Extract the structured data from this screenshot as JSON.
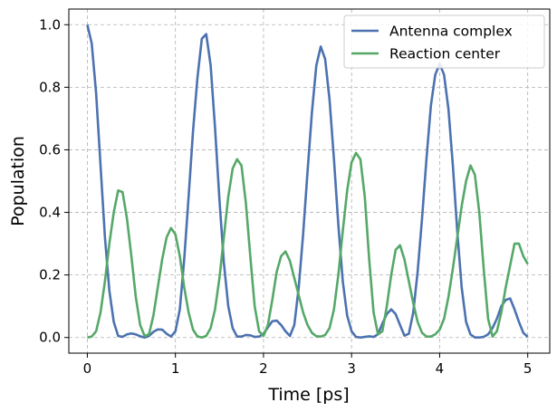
{
  "chart_data": {
    "type": "line",
    "title": "",
    "xlabel": "Time [ps]",
    "ylabel": "Population",
    "xlim": [
      -0.21,
      5.25
    ],
    "ylim": [
      -0.05,
      1.05
    ],
    "xticks": [
      0,
      1,
      2,
      3,
      4,
      5
    ],
    "xtick_labels": [
      "0",
      "1",
      "2",
      "3",
      "4",
      "5"
    ],
    "yticks": [
      0.0,
      0.2,
      0.4,
      0.6,
      0.8,
      1.0
    ],
    "ytick_labels": [
      "0.0",
      "0.2",
      "0.4",
      "0.6",
      "0.8",
      "1.0"
    ],
    "grid": true,
    "legend_position": "top-right",
    "series": [
      {
        "name": "Antenna complex",
        "color": "#4c72b0",
        "points": [
          [
            0.0,
            1.0
          ],
          [
            0.05,
            0.94
          ],
          [
            0.1,
            0.78
          ],
          [
            0.15,
            0.55
          ],
          [
            0.2,
            0.32
          ],
          [
            0.25,
            0.15
          ],
          [
            0.3,
            0.05
          ],
          [
            0.35,
            0.005
          ],
          [
            0.4,
            0.002
          ],
          [
            0.45,
            0.01
          ],
          [
            0.5,
            0.013
          ],
          [
            0.55,
            0.01
          ],
          [
            0.6,
            0.004
          ],
          [
            0.65,
            0.0
          ],
          [
            0.7,
            0.005
          ],
          [
            0.75,
            0.018
          ],
          [
            0.8,
            0.026
          ],
          [
            0.85,
            0.025
          ],
          [
            0.9,
            0.012
          ],
          [
            0.95,
            0.003
          ],
          [
            1.0,
            0.02
          ],
          [
            1.05,
            0.09
          ],
          [
            1.1,
            0.25
          ],
          [
            1.15,
            0.45
          ],
          [
            1.2,
            0.66
          ],
          [
            1.25,
            0.83
          ],
          [
            1.3,
            0.955
          ],
          [
            1.35,
            0.97
          ],
          [
            1.4,
            0.87
          ],
          [
            1.45,
            0.67
          ],
          [
            1.5,
            0.44
          ],
          [
            1.55,
            0.24
          ],
          [
            1.6,
            0.1
          ],
          [
            1.65,
            0.03
          ],
          [
            1.7,
            0.003
          ],
          [
            1.75,
            0.003
          ],
          [
            1.8,
            0.008
          ],
          [
            1.85,
            0.007
          ],
          [
            1.9,
            0.002
          ],
          [
            1.95,
            0.003
          ],
          [
            2.0,
            0.012
          ],
          [
            2.05,
            0.032
          ],
          [
            2.1,
            0.052
          ],
          [
            2.15,
            0.054
          ],
          [
            2.2,
            0.04
          ],
          [
            2.25,
            0.02
          ],
          [
            2.3,
            0.005
          ],
          [
            2.35,
            0.04
          ],
          [
            2.4,
            0.16
          ],
          [
            2.45,
            0.33
          ],
          [
            2.5,
            0.53
          ],
          [
            2.55,
            0.72
          ],
          [
            2.6,
            0.87
          ],
          [
            2.65,
            0.93
          ],
          [
            2.7,
            0.89
          ],
          [
            2.75,
            0.76
          ],
          [
            2.8,
            0.57
          ],
          [
            2.85,
            0.36
          ],
          [
            2.9,
            0.18
          ],
          [
            2.95,
            0.07
          ],
          [
            3.0,
            0.02
          ],
          [
            3.05,
            0.002
          ],
          [
            3.1,
            0.0
          ],
          [
            3.15,
            0.002
          ],
          [
            3.2,
            0.004
          ],
          [
            3.25,
            0.002
          ],
          [
            3.3,
            0.01
          ],
          [
            3.35,
            0.045
          ],
          [
            3.4,
            0.075
          ],
          [
            3.45,
            0.09
          ],
          [
            3.5,
            0.075
          ],
          [
            3.55,
            0.04
          ],
          [
            3.6,
            0.006
          ],
          [
            3.65,
            0.012
          ],
          [
            3.7,
            0.08
          ],
          [
            3.75,
            0.21
          ],
          [
            3.8,
            0.38
          ],
          [
            3.85,
            0.57
          ],
          [
            3.9,
            0.74
          ],
          [
            3.95,
            0.84
          ],
          [
            4.0,
            0.875
          ],
          [
            4.05,
            0.84
          ],
          [
            4.1,
            0.73
          ],
          [
            4.15,
            0.55
          ],
          [
            4.2,
            0.34
          ],
          [
            4.25,
            0.16
          ],
          [
            4.3,
            0.05
          ],
          [
            4.35,
            0.01
          ],
          [
            4.4,
            0.0
          ],
          [
            4.45,
            0.0
          ],
          [
            4.5,
            0.002
          ],
          [
            4.55,
            0.01
          ],
          [
            4.6,
            0.03
          ],
          [
            4.65,
            0.06
          ],
          [
            4.7,
            0.1
          ],
          [
            4.75,
            0.12
          ],
          [
            4.8,
            0.125
          ],
          [
            4.85,
            0.09
          ],
          [
            4.9,
            0.05
          ],
          [
            4.95,
            0.015
          ],
          [
            5.0,
            0.002
          ]
        ]
      },
      {
        "name": "Reaction center",
        "color": "#55a868",
        "points": [
          [
            0.0,
            0.0
          ],
          [
            0.05,
            0.003
          ],
          [
            0.1,
            0.02
          ],
          [
            0.15,
            0.08
          ],
          [
            0.2,
            0.18
          ],
          [
            0.25,
            0.3
          ],
          [
            0.3,
            0.4
          ],
          [
            0.35,
            0.47
          ],
          [
            0.4,
            0.465
          ],
          [
            0.45,
            0.38
          ],
          [
            0.5,
            0.26
          ],
          [
            0.55,
            0.13
          ],
          [
            0.6,
            0.04
          ],
          [
            0.65,
            0.005
          ],
          [
            0.7,
            0.01
          ],
          [
            0.75,
            0.07
          ],
          [
            0.8,
            0.16
          ],
          [
            0.85,
            0.25
          ],
          [
            0.9,
            0.32
          ],
          [
            0.95,
            0.35
          ],
          [
            1.0,
            0.33
          ],
          [
            1.05,
            0.26
          ],
          [
            1.1,
            0.16
          ],
          [
            1.15,
            0.08
          ],
          [
            1.2,
            0.025
          ],
          [
            1.25,
            0.004
          ],
          [
            1.3,
            0.0
          ],
          [
            1.35,
            0.005
          ],
          [
            1.4,
            0.03
          ],
          [
            1.45,
            0.09
          ],
          [
            1.5,
            0.19
          ],
          [
            1.55,
            0.32
          ],
          [
            1.6,
            0.45
          ],
          [
            1.65,
            0.54
          ],
          [
            1.7,
            0.57
          ],
          [
            1.75,
            0.55
          ],
          [
            1.8,
            0.43
          ],
          [
            1.85,
            0.26
          ],
          [
            1.9,
            0.1
          ],
          [
            1.95,
            0.02
          ],
          [
            2.0,
            0.005
          ],
          [
            2.05,
            0.04
          ],
          [
            2.1,
            0.12
          ],
          [
            2.15,
            0.21
          ],
          [
            2.2,
            0.26
          ],
          [
            2.25,
            0.275
          ],
          [
            2.3,
            0.245
          ],
          [
            2.35,
            0.19
          ],
          [
            2.4,
            0.135
          ],
          [
            2.45,
            0.08
          ],
          [
            2.5,
            0.04
          ],
          [
            2.55,
            0.015
          ],
          [
            2.6,
            0.004
          ],
          [
            2.65,
            0.003
          ],
          [
            2.7,
            0.008
          ],
          [
            2.75,
            0.03
          ],
          [
            2.8,
            0.09
          ],
          [
            2.85,
            0.2
          ],
          [
            2.9,
            0.34
          ],
          [
            2.95,
            0.47
          ],
          [
            3.0,
            0.56
          ],
          [
            3.05,
            0.59
          ],
          [
            3.1,
            0.57
          ],
          [
            3.15,
            0.45
          ],
          [
            3.2,
            0.25
          ],
          [
            3.25,
            0.08
          ],
          [
            3.3,
            0.01
          ],
          [
            3.35,
            0.02
          ],
          [
            3.4,
            0.1
          ],
          [
            3.45,
            0.2
          ],
          [
            3.5,
            0.28
          ],
          [
            3.55,
            0.295
          ],
          [
            3.6,
            0.25
          ],
          [
            3.65,
            0.18
          ],
          [
            3.7,
            0.11
          ],
          [
            3.75,
            0.05
          ],
          [
            3.8,
            0.015
          ],
          [
            3.85,
            0.003
          ],
          [
            3.9,
            0.003
          ],
          [
            3.95,
            0.01
          ],
          [
            4.0,
            0.025
          ],
          [
            4.05,
            0.06
          ],
          [
            4.1,
            0.13
          ],
          [
            4.15,
            0.22
          ],
          [
            4.2,
            0.32
          ],
          [
            4.25,
            0.42
          ],
          [
            4.3,
            0.5
          ],
          [
            4.35,
            0.55
          ],
          [
            4.4,
            0.52
          ],
          [
            4.45,
            0.4
          ],
          [
            4.5,
            0.22
          ],
          [
            4.55,
            0.06
          ],
          [
            4.6,
            0.003
          ],
          [
            4.65,
            0.02
          ],
          [
            4.7,
            0.08
          ],
          [
            4.75,
            0.16
          ],
          [
            4.8,
            0.23
          ],
          [
            4.85,
            0.3
          ],
          [
            4.9,
            0.3
          ],
          [
            4.95,
            0.26
          ],
          [
            5.0,
            0.235
          ]
        ]
      }
    ]
  }
}
